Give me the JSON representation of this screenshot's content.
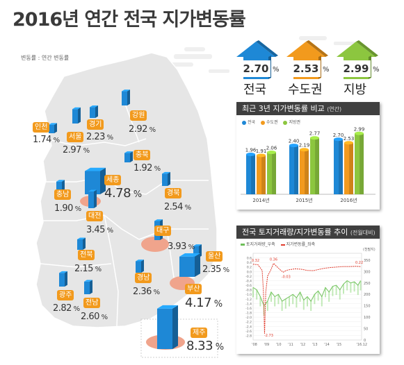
{
  "title": "2016년 연간 전국 지가변동률",
  "unit_note": "변동률 : 연간 변동률",
  "headline": [
    {
      "label": "전국",
      "value": "2.70",
      "unit": "%",
      "color": "#1e88d6"
    },
    {
      "label": "수도권",
      "value": "2.53",
      "unit": "%",
      "color": "#f29a1d"
    },
    {
      "label": "지방",
      "value": "2.99",
      "unit": "%",
      "color": "#8cc63f"
    }
  ],
  "regions": [
    {
      "name": "인천",
      "value": "1.74",
      "unit": "%"
    },
    {
      "name": "서울",
      "value": "2.97",
      "unit": "%"
    },
    {
      "name": "경기",
      "value": "2.23",
      "unit": "%"
    },
    {
      "name": "강원",
      "value": "2.92",
      "unit": "%"
    },
    {
      "name": "충북",
      "value": "1.92",
      "unit": "%"
    },
    {
      "name": "충남",
      "value": "1.90",
      "unit": "%"
    },
    {
      "name": "세종",
      "value": "4.78",
      "unit": "%"
    },
    {
      "name": "대전",
      "value": "3.45",
      "unit": "%"
    },
    {
      "name": "경북",
      "value": "2.54",
      "unit": "%"
    },
    {
      "name": "대구",
      "value": "3.93",
      "unit": "%"
    },
    {
      "name": "전북",
      "value": "2.15",
      "unit": "%"
    },
    {
      "name": "울산",
      "value": "2.35",
      "unit": "%"
    },
    {
      "name": "경남",
      "value": "2.36",
      "unit": "%"
    },
    {
      "name": "부산",
      "value": "4.17",
      "unit": "%"
    },
    {
      "name": "광주",
      "value": "2.82",
      "unit": "%"
    },
    {
      "name": "전남",
      "value": "2.60",
      "unit": "%"
    },
    {
      "name": "제주",
      "value": "8.33",
      "unit": "%"
    }
  ],
  "colors": {
    "orange": "#f29a1d",
    "blue": "#1e88d6",
    "green": "#8cc63f",
    "land": "#e6e6e6",
    "hotspot": "#f0a48c",
    "trade": "#6fbf5a",
    "land_change": "#e03b2c"
  },
  "chart_data": [
    {
      "type": "bar",
      "title": "최근 3년 지가변동률 비교",
      "subtitle": "(연간)",
      "legend": [
        "전국",
        "수도권",
        "지방권"
      ],
      "legend_position": "top-left",
      "categories": [
        "2014년",
        "2015년",
        "2016년"
      ],
      "series": [
        {
          "name": "전국",
          "values": [
            1.96,
            2.4,
            2.7
          ],
          "color": "#1e88d6"
        },
        {
          "name": "수도권",
          "values": [
            1.91,
            2.19,
            2.53
          ],
          "color": "#f29a1d"
        },
        {
          "name": "지방권",
          "values": [
            2.06,
            2.77,
            2.99
          ],
          "color": "#8cc63f"
        }
      ],
      "value_labels": [
        [
          "1.96",
          "1.91",
          "2.06"
        ],
        [
          "2.40",
          "2.19",
          "2.77"
        ],
        [
          "2.70",
          "2.53",
          "2.99"
        ]
      ],
      "ylim": [
        0,
        3.3
      ],
      "grid": false
    },
    {
      "type": "line",
      "title": "전국 토지거래량/지가변동률 추이",
      "subtitle": "(전월대비)",
      "legend": [
        "토지거래량_우축",
        "지가변동률_좌축"
      ],
      "legend_position": "top-left",
      "right_axis_unit": "(천필지)",
      "x_tick_labels": [
        "'08",
        "'09",
        "'10",
        "'11",
        "'12",
        "'13",
        "'14",
        "'15",
        "'16.12"
      ],
      "left_ticks": [
        "0.6",
        "0.4",
        "0.2",
        "0.0",
        "-0.2",
        "-0.4",
        "-0.6",
        "-0.8",
        "-1.0",
        "-1.2",
        "-1.4",
        "-1.6",
        "-1.8",
        "-2.0",
        "-2.2",
        "-2.4",
        "-2.6",
        "-2.8"
      ],
      "right_ticks": [
        "350",
        "300",
        "250",
        "200",
        "150",
        "100",
        "50",
        "0"
      ],
      "ylim_left": [
        -3.0,
        0.8
      ],
      "ylim_right": [
        0,
        380
      ],
      "grid": true,
      "annotations": [
        "0.32",
        "-2.73",
        "0.36",
        "-0.03",
        "0.22"
      ],
      "series": [
        {
          "name": "지가변동률_좌축",
          "axis": "left",
          "color": "#e03b2c",
          "x": [
            2008.0,
            2008.4,
            2008.75,
            2008.85,
            2008.95,
            2009.05,
            2009.2,
            2009.45,
            2009.7,
            2010.0,
            2010.3,
            2010.5,
            2010.75,
            2011.0,
            2011.5,
            2012.0,
            2012.5,
            2013.0,
            2013.5,
            2014.0,
            2014.5,
            2015.0,
            2015.5,
            2016.0,
            2016.5,
            2016.92
          ],
          "y": [
            0.32,
            0.3,
            0.05,
            -0.8,
            -2.73,
            -0.9,
            -0.2,
            0.05,
            0.36,
            0.2,
            0.05,
            -0.03,
            0.05,
            0.08,
            0.12,
            0.1,
            0.05,
            0.04,
            0.1,
            0.15,
            0.18,
            0.2,
            0.22,
            0.22,
            0.23,
            0.22
          ]
        },
        {
          "name": "토지거래량_우축",
          "axis": "right",
          "color": "#6fbf5a",
          "x": [
            2008.0,
            2008.3,
            2008.6,
            2008.9,
            2009.2,
            2009.5,
            2009.8,
            2010.1,
            2010.4,
            2010.7,
            2011.0,
            2011.3,
            2011.6,
            2011.9,
            2012.2,
            2012.5,
            2012.8,
            2013.1,
            2013.4,
            2013.7,
            2014.0,
            2014.3,
            2014.6,
            2014.9,
            2015.2,
            2015.5,
            2015.8,
            2016.1,
            2016.4,
            2016.7,
            2016.92
          ],
          "y": [
            230,
            220,
            190,
            150,
            170,
            210,
            190,
            200,
            170,
            180,
            190,
            200,
            185,
            210,
            175,
            190,
            170,
            200,
            215,
            190,
            230,
            210,
            235,
            240,
            220,
            245,
            260,
            250,
            255,
            240,
            260
          ]
        }
      ]
    }
  ]
}
